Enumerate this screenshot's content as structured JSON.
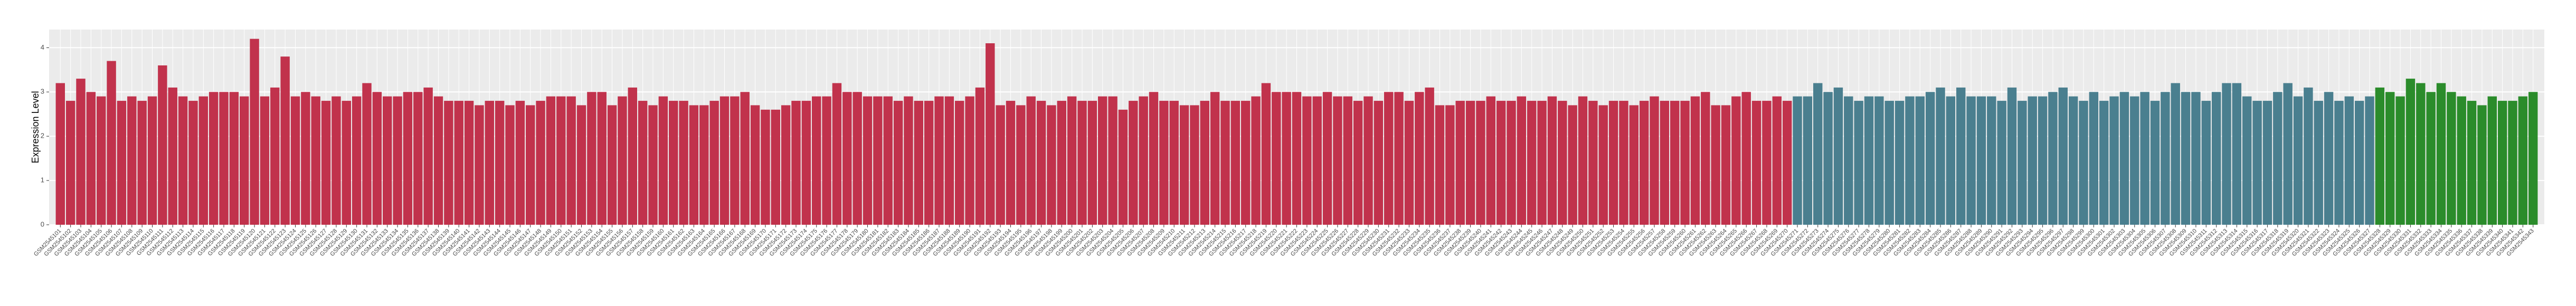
{
  "chart_data": {
    "type": "bar",
    "ylabel": "Expression Level",
    "ylim": [
      0,
      4.41
    ],
    "yticks": [
      0,
      1,
      2,
      3,
      4
    ],
    "grid": true,
    "categories": [
      "GSM2545101",
      "GSM2545102",
      "GSM2545103",
      "GSM2545104",
      "GSM2545105",
      "GSM2545106",
      "GSM2545107",
      "GSM2545108",
      "GSM2545109",
      "GSM2545110",
      "GSM2545111",
      "GSM2545112",
      "GSM2545113",
      "GSM2545114",
      "GSM2545115",
      "GSM2545116",
      "GSM2545117",
      "GSM2545118",
      "GSM2545119",
      "GSM2545120",
      "GSM2545121",
      "GSM2545122",
      "GSM2545123",
      "GSM2545124",
      "GSM2545125",
      "GSM2545126",
      "GSM2545127",
      "GSM2545128",
      "GSM2545129",
      "GSM2545130",
      "GSM2545131",
      "GSM2545132",
      "GSM2545133",
      "GSM2545134",
      "GSM2545135",
      "GSM2545136",
      "GSM2545137",
      "GSM2545138",
      "GSM2545139",
      "GSM2545140",
      "GSM2545141",
      "GSM2545142",
      "GSM2545143",
      "GSM2545144",
      "GSM2545145",
      "GSM2545146",
      "GSM2545147",
      "GSM2545148",
      "GSM2545149",
      "GSM2545150",
      "GSM2545151",
      "GSM2545152",
      "GSM2545153",
      "GSM2545154",
      "GSM2545155",
      "GSM2545156",
      "GSM2545157",
      "GSM2545158",
      "GSM2545159",
      "GSM2545160",
      "GSM2545161",
      "GSM2545162",
      "GSM2545163",
      "GSM2545164",
      "GSM2545165",
      "GSM2545166",
      "GSM2545167",
      "GSM2545168",
      "GSM2545169",
      "GSM2545170",
      "GSM2545171",
      "GSM2545172",
      "GSM2545173",
      "GSM2545174",
      "GSM2545175",
      "GSM2545176",
      "GSM2545177",
      "GSM2545178",
      "GSM2545179",
      "GSM2545180",
      "GSM2545181",
      "GSM2545182",
      "GSM2545183",
      "GSM2545184",
      "GSM2545185",
      "GSM2545186",
      "GSM2545187",
      "GSM2545188",
      "GSM2545189",
      "GSM2545190",
      "GSM2545191",
      "GSM2545192",
      "GSM2545193",
      "GSM2545194",
      "GSM2545195",
      "GSM2545196",
      "GSM2545197",
      "GSM2545198",
      "GSM2545199",
      "GSM2545200",
      "GSM2545201",
      "GSM2545202",
      "GSM2545203",
      "GSM2545204",
      "GSM2545205",
      "GSM2545206",
      "GSM2545207",
      "GSM2545208",
      "GSM2545209",
      "GSM2545210",
      "GSM2545211",
      "GSM2545212",
      "GSM2545213",
      "GSM2545214",
      "GSM2545215",
      "GSM2545216",
      "GSM2545217",
      "GSM2545218",
      "GSM2545219",
      "GSM2545220",
      "GSM2545221",
      "GSM2545222",
      "GSM2545223",
      "GSM2545224",
      "GSM2545225",
      "GSM2545226",
      "GSM2545227",
      "GSM2545228",
      "GSM2545229",
      "GSM2545230",
      "GSM2545231",
      "GSM2545232",
      "GSM2545233",
      "GSM2545234",
      "GSM2545235",
      "GSM2545236",
      "GSM2545237",
      "GSM2545238",
      "GSM2545239",
      "GSM2545240",
      "GSM2545241",
      "GSM2545242",
      "GSM2545243",
      "GSM2545244",
      "GSM2545245",
      "GSM2545246",
      "GSM2545247",
      "GSM2545248",
      "GSM2545249",
      "GSM2545250",
      "GSM2545251",
      "GSM2545252",
      "GSM2545253",
      "GSM2545254",
      "GSM2545255",
      "GSM2545256",
      "GSM2545257",
      "GSM2545258",
      "GSM2545259",
      "GSM2545260",
      "GSM2545261",
      "GSM2545262",
      "GSM2545263",
      "GSM2545264",
      "GSM2545265",
      "GSM2545266",
      "GSM2545267",
      "GSM2545268",
      "GSM2545269",
      "GSM2545270",
      "GSM2545271",
      "GSM2545272",
      "GSM2545273",
      "GSM2545274",
      "GSM2545275",
      "GSM2545276",
      "GSM2545277",
      "GSM2545278",
      "GSM2545279",
      "GSM2545280",
      "GSM2545281",
      "GSM2545282",
      "GSM2545283",
      "GSM2545284",
      "GSM2545285",
      "GSM2545286",
      "GSM2545287",
      "GSM2545288",
      "GSM2545289",
      "GSM2545290",
      "GSM2545291",
      "GSM2545292",
      "GSM2545293",
      "GSM2545294",
      "GSM2545295",
      "GSM2545296",
      "GSM2545297",
      "GSM2545298",
      "GSM2545299",
      "GSM2545300",
      "GSM2545301",
      "GSM2545302",
      "GSM2545303",
      "GSM2545304",
      "GSM2545305",
      "GSM2545306",
      "GSM2545307",
      "GSM2545308",
      "GSM2545309",
      "GSM2545310",
      "GSM2545311",
      "GSM2545312",
      "GSM2545313",
      "GSM2545314",
      "GSM2545315",
      "GSM2545316",
      "GSM2545317",
      "GSM2545318",
      "GSM2545319",
      "GSM2545320",
      "GSM2545321",
      "GSM2545322",
      "GSM2545323",
      "GSM2545324",
      "GSM2545325",
      "GSM2545326",
      "GSM2545327",
      "GSM2545328",
      "GSM2545329",
      "GSM2545330",
      "GSM2545331",
      "GSM2545332",
      "GSM2545333",
      "GSM2545334",
      "GSM2545335",
      "GSM2545336",
      "GSM2545337",
      "GSM2545338",
      "GSM2545339",
      "GSM2545340",
      "GSM2545341",
      "GSM2545342",
      "GSM2545343"
    ],
    "values": [
      3.2,
      2.8,
      3.3,
      3.0,
      2.9,
      3.7,
      2.8,
      2.9,
      2.8,
      2.9,
      3.6,
      3.1,
      2.9,
      2.8,
      2.9,
      3.0,
      3.0,
      3.0,
      2.9,
      4.2,
      2.9,
      3.1,
      3.8,
      2.9,
      3.0,
      2.9,
      2.8,
      2.9,
      2.8,
      2.9,
      3.2,
      3.0,
      2.9,
      2.9,
      3.0,
      3.0,
      3.1,
      2.9,
      2.8,
      2.8,
      2.8,
      2.7,
      2.8,
      2.8,
      2.7,
      2.8,
      2.7,
      2.8,
      2.9,
      2.9,
      2.9,
      2.7,
      3.0,
      3.0,
      2.7,
      2.9,
      3.1,
      2.8,
      2.7,
      2.9,
      2.8,
      2.8,
      2.7,
      2.7,
      2.8,
      2.9,
      2.9,
      3.0,
      2.7,
      2.6,
      2.6,
      2.7,
      2.8,
      2.8,
      2.9,
      2.9,
      3.2,
      3.0,
      3.0,
      2.9,
      2.9,
      2.9,
      2.8,
      2.9,
      2.8,
      2.8,
      2.9,
      2.9,
      2.8,
      2.9,
      3.1,
      4.1,
      2.7,
      2.8,
      2.7,
      2.9,
      2.8,
      2.7,
      2.8,
      2.9,
      2.8,
      2.8,
      2.9,
      2.9,
      2.6,
      2.8,
      2.9,
      3.0,
      2.8,
      2.8,
      2.7,
      2.7,
      2.8,
      3.0,
      2.8,
      2.8,
      2.8,
      2.9,
      3.2,
      3.0,
      3.0,
      3.0,
      2.9,
      2.9,
      3.0,
      2.9,
      2.9,
      2.8,
      2.9,
      2.8,
      3.0,
      3.0,
      2.8,
      3.0,
      3.1,
      2.7,
      2.7,
      2.8,
      2.8,
      2.8,
      2.9,
      2.8,
      2.8,
      2.9,
      2.8,
      2.8,
      2.9,
      2.8,
      2.7,
      2.9,
      2.8,
      2.7,
      2.8,
      2.8,
      2.7,
      2.8,
      2.9,
      2.8,
      2.8,
      2.8,
      2.9,
      3.0,
      2.7,
      2.7,
      2.9,
      3.0,
      2.8,
      2.8,
      2.9,
      2.8,
      2.9,
      2.9,
      3.2,
      3.0,
      3.1,
      2.9,
      2.8,
      2.9,
      2.9,
      2.8,
      2.8,
      2.9,
      2.9,
      3.0,
      3.1,
      2.9,
      3.1,
      2.9,
      2.9,
      2.9,
      2.8,
      3.1,
      2.8,
      2.9,
      2.9,
      3.0,
      3.1,
      2.9,
      2.8,
      3.0,
      2.8,
      2.9,
      3.0,
      2.9,
      3.0,
      2.8,
      3.0,
      3.2,
      3.0,
      3.0,
      2.8,
      3.0,
      3.2,
      3.2,
      2.9,
      2.8,
      2.8,
      3.0,
      3.2,
      2.9,
      3.1,
      2.8,
      3.0,
      2.8,
      2.9,
      2.8,
      2.9,
      3.1,
      3.0,
      2.9,
      3.3,
      3.2,
      3.0,
      3.2,
      3.0,
      2.9,
      2.8,
      2.7,
      2.9,
      2.8,
      2.8,
      2.9,
      3.0
    ],
    "colors": [
      "#c1324c",
      "#c1324c",
      "#c1324c",
      "#c1324c",
      "#c1324c",
      "#c1324c",
      "#c1324c",
      "#c1324c",
      "#c1324c",
      "#c1324c",
      "#c1324c",
      "#c1324c",
      "#c1324c",
      "#c1324c",
      "#c1324c",
      "#c1324c",
      "#c1324c",
      "#c1324c",
      "#c1324c",
      "#c1324c",
      "#c1324c",
      "#c1324c",
      "#c1324c",
      "#c1324c",
      "#c1324c",
      "#c1324c",
      "#c1324c",
      "#c1324c",
      "#c1324c",
      "#c1324c",
      "#c1324c",
      "#c1324c",
      "#c1324c",
      "#c1324c",
      "#c1324c",
      "#c1324c",
      "#c1324c",
      "#c1324c",
      "#c1324c",
      "#c1324c",
      "#c1324c",
      "#c1324c",
      "#c1324c",
      "#c1324c",
      "#c1324c",
      "#c1324c",
      "#c1324c",
      "#c1324c",
      "#c1324c",
      "#c1324c",
      "#c1324c",
      "#c1324c",
      "#c1324c",
      "#c1324c",
      "#c1324c",
      "#c1324c",
      "#c1324c",
      "#c1324c",
      "#c1324c",
      "#c1324c",
      "#c1324c",
      "#c1324c",
      "#c1324c",
      "#c1324c",
      "#c1324c",
      "#c1324c",
      "#c1324c",
      "#c1324c",
      "#c1324c",
      "#c1324c",
      "#c1324c",
      "#c1324c",
      "#c1324c",
      "#c1324c",
      "#c1324c",
      "#c1324c",
      "#c1324c",
      "#c1324c",
      "#c1324c",
      "#c1324c",
      "#c1324c",
      "#c1324c",
      "#c1324c",
      "#c1324c",
      "#c1324c",
      "#c1324c",
      "#c1324c",
      "#c1324c",
      "#c1324c",
      "#c1324c",
      "#c1324c",
      "#c1324c",
      "#c1324c",
      "#c1324c",
      "#c1324c",
      "#c1324c",
      "#c1324c",
      "#c1324c",
      "#c1324c",
      "#c1324c",
      "#c1324c",
      "#c1324c",
      "#c1324c",
      "#c1324c",
      "#c1324c",
      "#c1324c",
      "#c1324c",
      "#c1324c",
      "#c1324c",
      "#c1324c",
      "#c1324c",
      "#c1324c",
      "#c1324c",
      "#c1324c",
      "#c1324c",
      "#c1324c",
      "#c1324c",
      "#c1324c",
      "#c1324c",
      "#c1324c",
      "#c1324c",
      "#c1324c",
      "#c1324c",
      "#c1324c",
      "#c1324c",
      "#c1324c",
      "#c1324c",
      "#c1324c",
      "#c1324c",
      "#c1324c",
      "#c1324c",
      "#c1324c",
      "#c1324c",
      "#c1324c",
      "#c1324c",
      "#c1324c",
      "#c1324c",
      "#c1324c",
      "#c1324c",
      "#c1324c",
      "#c1324c",
      "#c1324c",
      "#c1324c",
      "#c1324c",
      "#c1324c",
      "#c1324c",
      "#c1324c",
      "#c1324c",
      "#c1324c",
      "#c1324c",
      "#c1324c",
      "#c1324c",
      "#c1324c",
      "#c1324c",
      "#c1324c",
      "#c1324c",
      "#c1324c",
      "#c1324c",
      "#c1324c",
      "#c1324c",
      "#c1324c",
      "#c1324c",
      "#c1324c",
      "#c1324c",
      "#c1324c",
      "#c1324c",
      "#c1324c",
      "#c1324c",
      "#c1324c",
      "#c1324c",
      "#4a7f8f",
      "#4a7f8f",
      "#4a7f8f",
      "#4a7f8f",
      "#4a7f8f",
      "#4a7f8f",
      "#4a7f8f",
      "#4a7f8f",
      "#4a7f8f",
      "#4a7f8f",
      "#4a7f8f",
      "#4a7f8f",
      "#4a7f8f",
      "#4a7f8f",
      "#4a7f8f",
      "#4a7f8f",
      "#4a7f8f",
      "#4a7f8f",
      "#4a7f8f",
      "#4a7f8f",
      "#4a7f8f",
      "#4a7f8f",
      "#4a7f8f",
      "#4a7f8f",
      "#4a7f8f",
      "#4a7f8f",
      "#4a7f8f",
      "#4a7f8f",
      "#4a7f8f",
      "#4a7f8f",
      "#4a7f8f",
      "#4a7f8f",
      "#4a7f8f",
      "#4a7f8f",
      "#4a7f8f",
      "#4a7f8f",
      "#4a7f8f",
      "#4a7f8f",
      "#4a7f8f",
      "#4a7f8f",
      "#4a7f8f",
      "#4a7f8f",
      "#4a7f8f",
      "#4a7f8f",
      "#4a7f8f",
      "#4a7f8f",
      "#4a7f8f",
      "#4a7f8f",
      "#4a7f8f",
      "#4a7f8f",
      "#4a7f8f",
      "#4a7f8f",
      "#4a7f8f",
      "#4a7f8f",
      "#4a7f8f",
      "#4a7f8f",
      "#4a7f8f",
      "#2b8c2b",
      "#2b8c2b",
      "#2b8c2b",
      "#2b8c2b",
      "#2b8c2b",
      "#2b8c2b",
      "#2b8c2b",
      "#2b8c2b",
      "#2b8c2b",
      "#2b8c2b",
      "#2b8c2b",
      "#2b8c2b",
      "#2b8c2b",
      "#2b8c2b",
      "#2b8c2b",
      "#2b8c2b"
    ]
  }
}
